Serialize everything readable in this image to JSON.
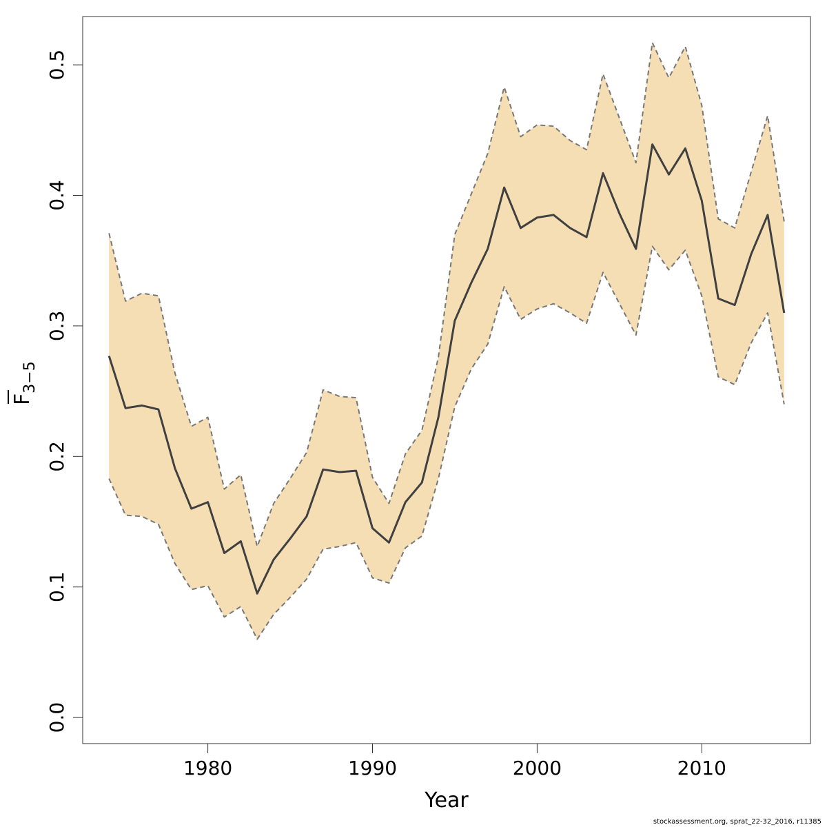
{
  "chart_data": {
    "type": "area",
    "xlabel": "Year",
    "ylabel": {
      "main": "F",
      "sub": "3−5"
    },
    "xlim": [
      1972.4,
      1975.0
    ],
    "ylim": [
      -0.02,
      0.537
    ],
    "x_ticks": [
      "1980",
      "1990",
      "2000",
      "2010"
    ],
    "y_ticks": [
      "0.0",
      "0.1",
      "0.2",
      "0.3",
      "0.4",
      "0.5"
    ],
    "x": [
      1974,
      1975,
      1976,
      1977,
      1978,
      1979,
      1980,
      1981,
      1982,
      1983,
      1984,
      1985,
      1986,
      1987,
      1988,
      1989,
      1990,
      1991,
      1992,
      1993,
      1994,
      1995,
      1996,
      1997,
      1998,
      1999,
      2000,
      2001,
      2002,
      2003,
      2004,
      2005,
      2006,
      2007,
      2008,
      2009,
      2010,
      2011,
      2012,
      2013,
      2014,
      2015
    ],
    "series": [
      {
        "role": "estimate",
        "values": [
          0.277,
          0.237,
          0.239,
          0.236,
          0.191,
          0.16,
          0.165,
          0.126,
          0.135,
          0.095,
          0.121,
          0.137,
          0.154,
          0.19,
          0.188,
          0.189,
          0.145,
          0.134,
          0.165,
          0.18,
          0.23,
          0.304,
          0.333,
          0.359,
          0.406,
          0.375,
          0.383,
          0.385,
          0.375,
          0.368,
          0.417,
          0.386,
          0.359,
          0.439,
          0.416,
          0.436,
          0.396,
          0.321,
          0.316,
          0.355,
          0.385,
          0.31
        ]
      },
      {
        "role": "upper",
        "values": [
          0.371,
          0.319,
          0.325,
          0.323,
          0.264,
          0.223,
          0.23,
          0.175,
          0.186,
          0.131,
          0.164,
          0.183,
          0.203,
          0.251,
          0.246,
          0.245,
          0.184,
          0.164,
          0.202,
          0.22,
          0.276,
          0.37,
          0.401,
          0.432,
          0.483,
          0.445,
          0.454,
          0.453,
          0.442,
          0.435,
          0.493,
          0.459,
          0.425,
          0.517,
          0.49,
          0.514,
          0.469,
          0.382,
          0.375,
          0.418,
          0.461,
          0.38
        ]
      },
      {
        "role": "lower",
        "values": [
          0.183,
          0.155,
          0.154,
          0.148,
          0.118,
          0.098,
          0.101,
          0.077,
          0.085,
          0.06,
          0.079,
          0.092,
          0.106,
          0.129,
          0.131,
          0.134,
          0.107,
          0.103,
          0.13,
          0.139,
          0.183,
          0.238,
          0.267,
          0.286,
          0.33,
          0.305,
          0.313,
          0.317,
          0.31,
          0.302,
          0.341,
          0.317,
          0.293,
          0.361,
          0.343,
          0.358,
          0.323,
          0.261,
          0.255,
          0.287,
          0.31,
          0.24
        ]
      }
    ],
    "colors": {
      "band": "#f5deb3",
      "line": "#404040",
      "bound": "#777777"
    },
    "grid": false
  },
  "footer": "stockassessment.org, sprat_22-32_2016, r11385"
}
